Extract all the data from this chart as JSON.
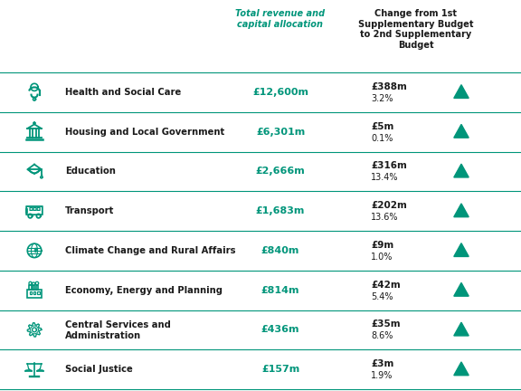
{
  "header_col1": "Total revenue and\ncapital allocation",
  "header_col2": "Change from 1st\nSupplementary Budget\nto 2nd Supplementary\nBudget",
  "rows": [
    {
      "label": "Health and Social Care",
      "label2": "",
      "allocation": "£12,600m",
      "change_abs": "£388m",
      "change_pct": "3.2%"
    },
    {
      "label": "Housing and Local Government",
      "label2": "",
      "allocation": "£6,301m",
      "change_abs": "£5m",
      "change_pct": "0.1%"
    },
    {
      "label": "Education",
      "label2": "",
      "allocation": "£2,666m",
      "change_abs": "£316m",
      "change_pct": "13.4%"
    },
    {
      "label": "Transport",
      "label2": "",
      "allocation": "£1,683m",
      "change_abs": "£202m",
      "change_pct": "13.6%"
    },
    {
      "label": "Climate Change and Rural Affairs",
      "label2": "",
      "allocation": "£840m",
      "change_abs": "£9m",
      "change_pct": "1.0%"
    },
    {
      "label": "Economy, Energy and Planning",
      "label2": "",
      "allocation": "£814m",
      "change_abs": "£42m",
      "change_pct": "5.4%"
    },
    {
      "label": "Central Services and",
      "label2": "Administration",
      "allocation": "£436m",
      "change_abs": "£35m",
      "change_pct": "8.6%"
    },
    {
      "label": "Social Justice",
      "label2": "",
      "allocation": "£157m",
      "change_abs": "£3m",
      "change_pct": "1.9%"
    }
  ],
  "teal_color": "#00957a",
  "dark_teal": "#006B54",
  "black_color": "#1a1a1a",
  "line_color": "#00957a",
  "bg_color": "#ffffff"
}
